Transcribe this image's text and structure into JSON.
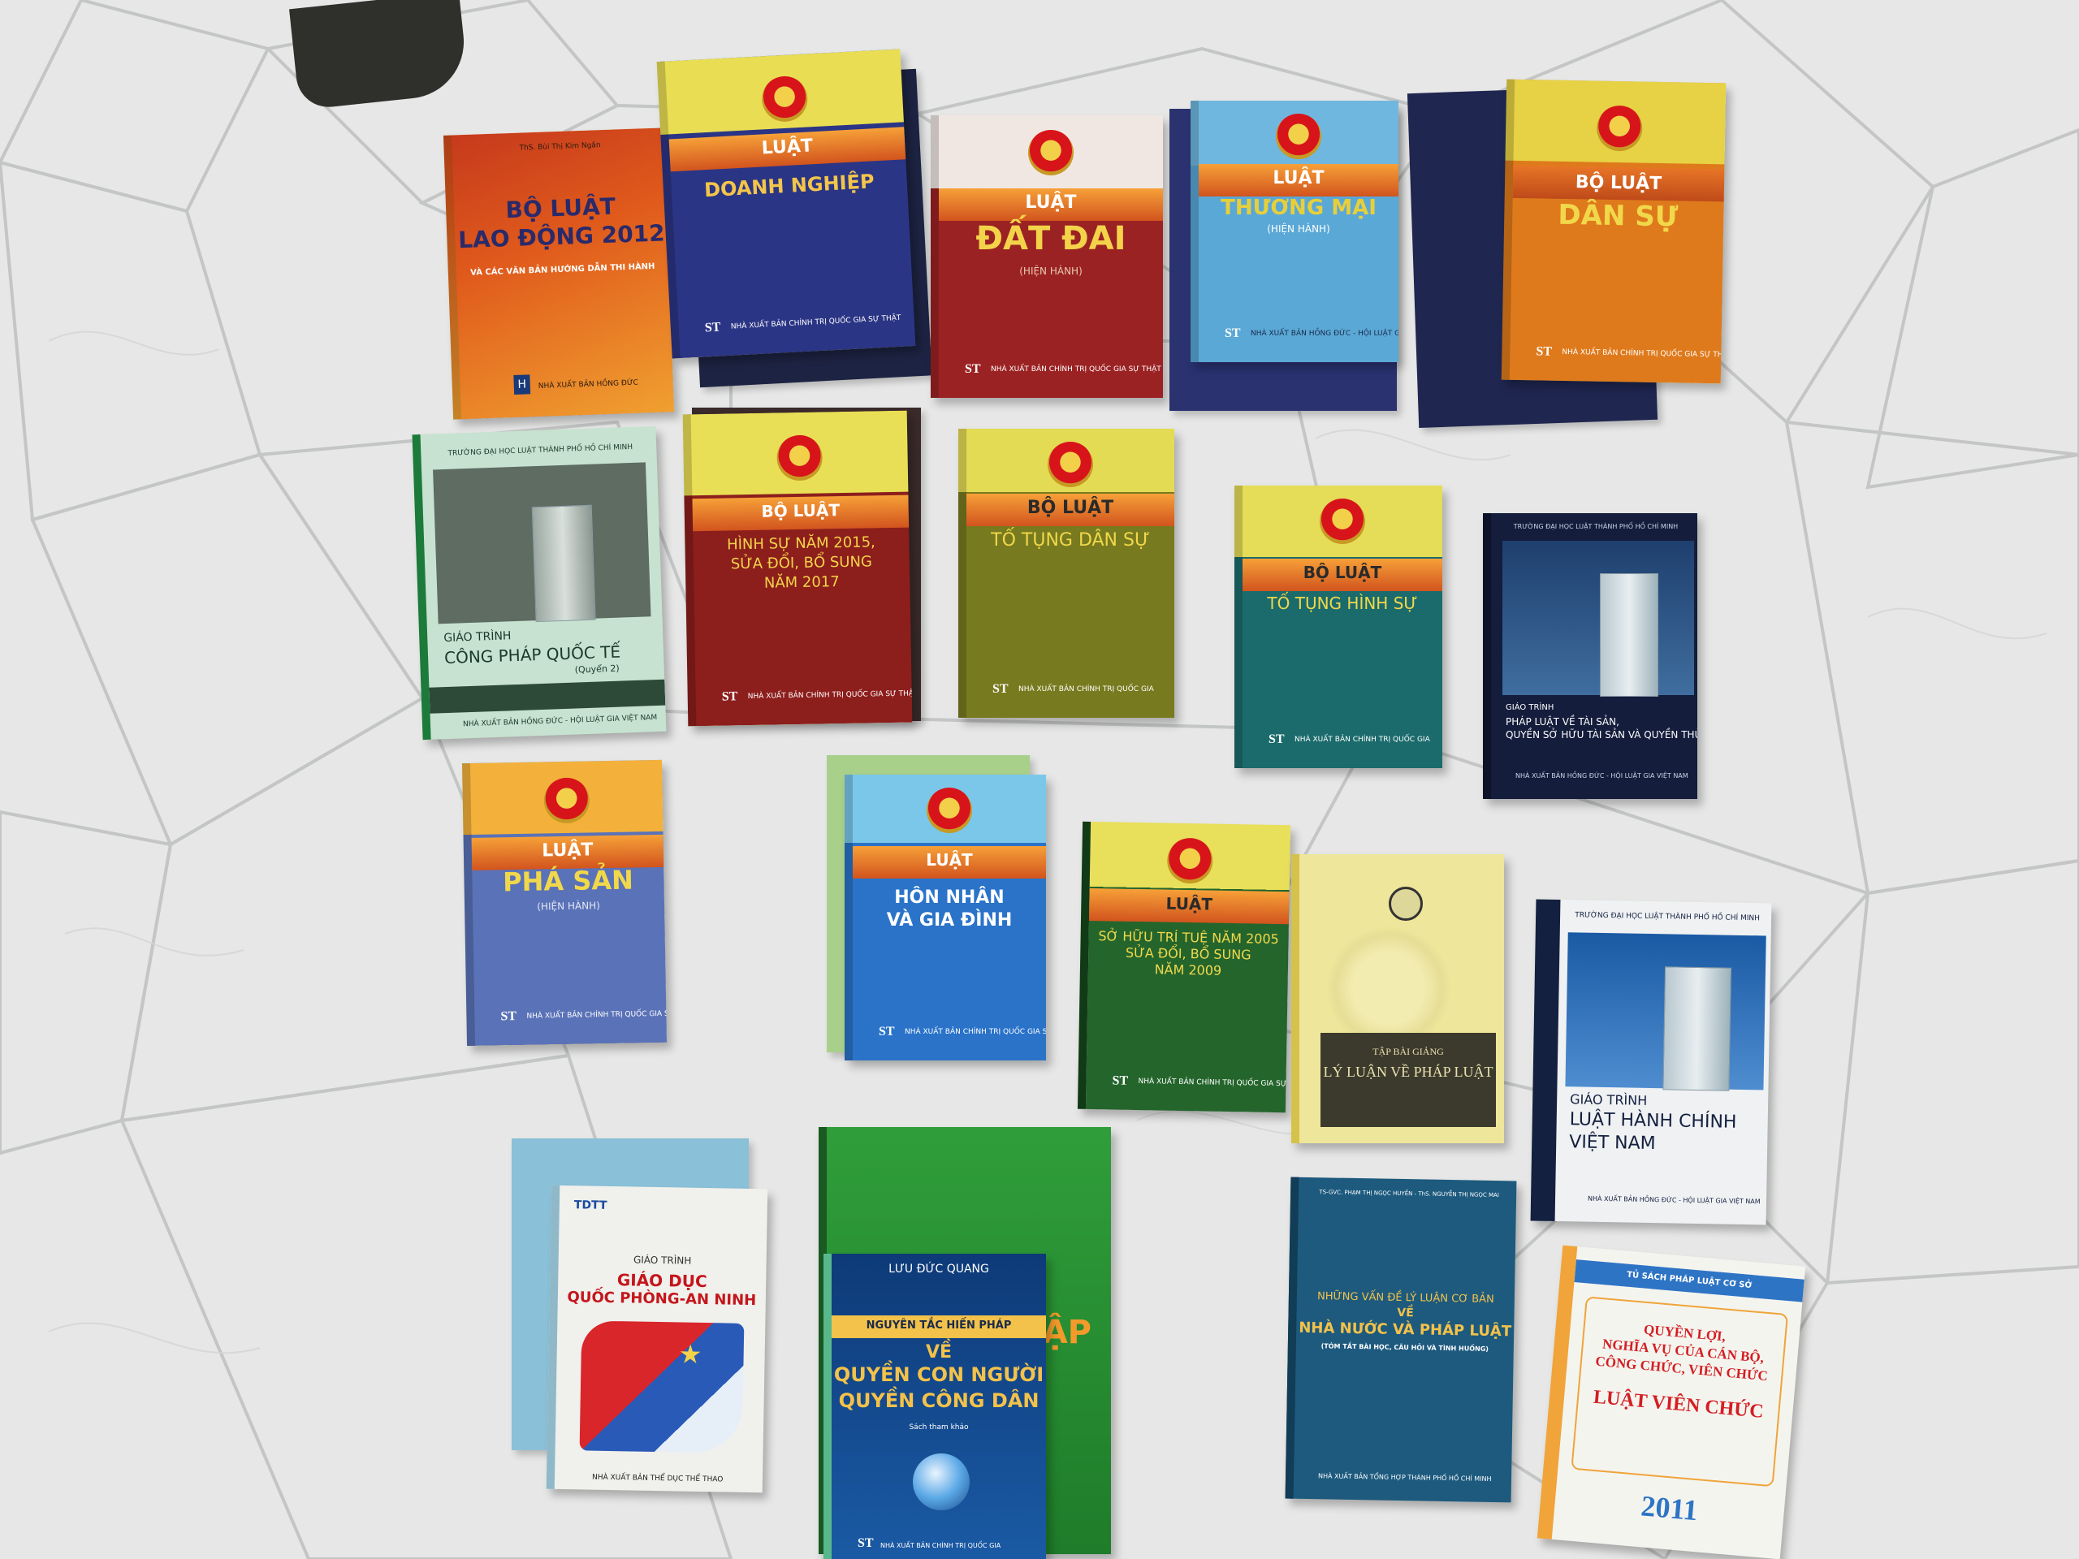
{
  "books": {
    "lao_dong": {
      "author": "ThS. Bùi Thị Kim Ngân",
      "title_1": "BỘ LUẬT",
      "title_2": "LAO ĐỘNG 2012",
      "subtitle": "VÀ CÁC VĂN BẢN HƯỚNG DẪN THI HÀNH",
      "publisher": "NHÀ XUẤT BẢN HỒNG ĐỨC"
    },
    "doanh_nghiep": {
      "kind": "LUẬT",
      "title": "DOANH NGHIỆP",
      "publisher": "NHÀ XUẤT BẢN CHÍNH TRỊ QUỐC GIA SỰ THẬT"
    },
    "dat_dai": {
      "kind": "LUẬT",
      "title": "ĐẤT ĐAI",
      "subtitle": "(HIỆN HÀNH)",
      "publisher": "NHÀ XUẤT BẢN CHÍNH TRỊ QUỐC GIA SỰ THẬT"
    },
    "thuong_mai": {
      "kind": "LUẬT",
      "title": "THƯƠNG MẠI",
      "subtitle": "(HIỆN HÀNH)",
      "publisher": "NHÀ XUẤT BẢN HỒNG ĐỨC - HỘI LUẬT GIA VIỆT NAM"
    },
    "dan_su": {
      "kind": "BỘ LUẬT",
      "title": "DÂN SỰ",
      "publisher": "NHÀ XUẤT BẢN CHÍNH TRỊ QUỐC GIA SỰ THẬT"
    },
    "cong_phap": {
      "school": "TRƯỜNG ĐẠI HỌC LUẬT THÀNH PHỐ HỒ CHÍ MINH",
      "label": "GIÁO TRÌNH",
      "title": "CÔNG PHÁP QUỐC TẾ",
      "volume": "(Quyển 2)",
      "publisher": "NHÀ XUẤT BẢN HỒNG ĐỨC - HỘI LUẬT GIA VIỆT NAM"
    },
    "hinh_su": {
      "kind": "BỘ LUẬT",
      "title_1": "HÌNH SỰ NĂM 2015,",
      "title_2": "SỬA ĐỔI, BỔ SUNG",
      "title_3": "NĂM 2017",
      "publisher": "NHÀ XUẤT BẢN CHÍNH TRỊ QUỐC GIA SỰ THẬT"
    },
    "to_tung_dan_su": {
      "kind": "BỘ LUẬT",
      "title": "TỐ TỤNG DÂN SỰ",
      "publisher": "NHÀ XUẤT BẢN CHÍNH TRỊ QUỐC GIA"
    },
    "to_tung_hinh_su": {
      "kind": "BỘ LUẬT",
      "title": "TỐ TỤNG HÌNH SỰ",
      "publisher": "NHÀ XUẤT BẢN CHÍNH TRỊ QUỐC GIA"
    },
    "tai_san": {
      "school": "TRƯỜNG ĐẠI HỌC LUẬT THÀNH PHỐ HỒ CHÍ MINH",
      "label": "GIÁO TRÌNH",
      "title_1": "PHÁP LUẬT VỀ TÀI SẢN,",
      "title_2": "QUYỀN SỞ HỮU TÀI SẢN VÀ QUYỀN THỪA KẾ",
      "publisher": "NHÀ XUẤT BẢN HỒNG ĐỨC - HỘI LUẬT GIA VIỆT NAM"
    },
    "pha_san": {
      "kind": "LUẬT",
      "title": "PHÁ SẢN",
      "subtitle": "(HIỆN HÀNH)",
      "publisher": "NHÀ XUẤT BẢN CHÍNH TRỊ QUỐC GIA SỰ THẬT"
    },
    "hon_nhan": {
      "kind": "LUẬT",
      "title_1": "HÔN NHÂN",
      "title_2": "VÀ GIA ĐÌNH",
      "publisher": "NHÀ XUẤT BẢN CHÍNH TRỊ QUỐC GIA SỰ THẬT"
    },
    "so_huu_tri_tue": {
      "kind": "LUẬT",
      "title_1": "SỞ HỮU TRÍ TUỆ NĂM 2005",
      "title_2": "SỬA ĐỔI, BỔ SUNG",
      "title_3": "NĂM 2009",
      "publisher": "NHÀ XUẤT BẢN CHÍNH TRỊ QUỐC GIA SỰ THẬT"
    },
    "ly_luan": {
      "label": "TẬP BÀI GIẢNG",
      "title": "LÝ LUẬN VỀ PHÁP LUẬT"
    },
    "hanh_chinh": {
      "school": "TRƯỜNG ĐẠI HỌC LUẬT THÀNH PHỐ HỒ CHÍ MINH",
      "label": "GIÁO TRÌNH",
      "title_1": "LUẬT HÀNH CHÍNH",
      "title_2": "VIỆT NAM",
      "spine": "LUẬT HÀNH CHÍNH VIỆT NAM",
      "publisher": "NHÀ XUẤT BẢN HỒNG ĐỨC - HỘI LUẬT GIA VIỆT NAM"
    },
    "quoc_phong": {
      "logo": "TDTT",
      "label": "GIÁO TRÌNH",
      "title_1": "GIÁO DỤC",
      "title_2": "QUỐC PHÒNG-AN NINH",
      "publisher": "NHÀ XUẤT BẢN THỂ DỤC THỂ THAO"
    },
    "quyen_con_nguoi": {
      "author": "LƯU ĐỨC QUANG",
      "band": "NGUYÊN TẮC HIẾN PHÁP",
      "title_1": "VỀ",
      "title_2": "QUYỀN CON NGƯỜI",
      "title_3": "QUYỀN CÔNG DÂN",
      "tag": "Sách tham khảo",
      "publisher": "NHÀ XUẤT BẢN CHÍNH TRỊ QUỐC GIA"
    },
    "green_big": {
      "fragment": "ẬP"
    },
    "nha_nuoc": {
      "authors": "TS-GVC. PHẠM THỊ NGỌC HUYỀN - ThS. NGUYỄN THỊ NGỌC MAI",
      "title_1": "NHỮNG VẤN ĐỀ LÝ LUẬN CƠ BẢN",
      "title_2": "VỀ",
      "title_3": "NHÀ NƯỚC VÀ PHÁP LUẬT",
      "subtitle": "(TÓM TẮT BÀI HỌC, CÂU HỎI VÀ TÌNH HUỐNG)",
      "publisher": "NHÀ XUẤT BẢN TỔNG HỢP THÀNH PHỐ HỒ CHÍ MINH"
    },
    "vien_chuc": {
      "series": "TỦ SÁCH PHÁP LUẬT CƠ SỞ",
      "title_1": "QUYỀN LỢI,",
      "title_2": "NGHĨA VỤ CỦA CÁN BỘ,",
      "title_3": "CÔNG CHỨC, VIÊN CHỨC",
      "title_4": "LUẬT VIÊN CHỨC",
      "year": "2011"
    },
    "st_mark": "ST"
  },
  "colors": {
    "floor": "#e6e7e6",
    "grout": "#c9cbc9",
    "yellow_top": "#e8df57",
    "navy": "#26317f",
    "maroon": "#8c1a1a",
    "sky": "#5fb2de",
    "orange": "#e27d1d",
    "olive": "#7b7a1e",
    "teal": "#1b6d6e",
    "royal_blue": "#2a73c9",
    "green": "#24652c"
  }
}
